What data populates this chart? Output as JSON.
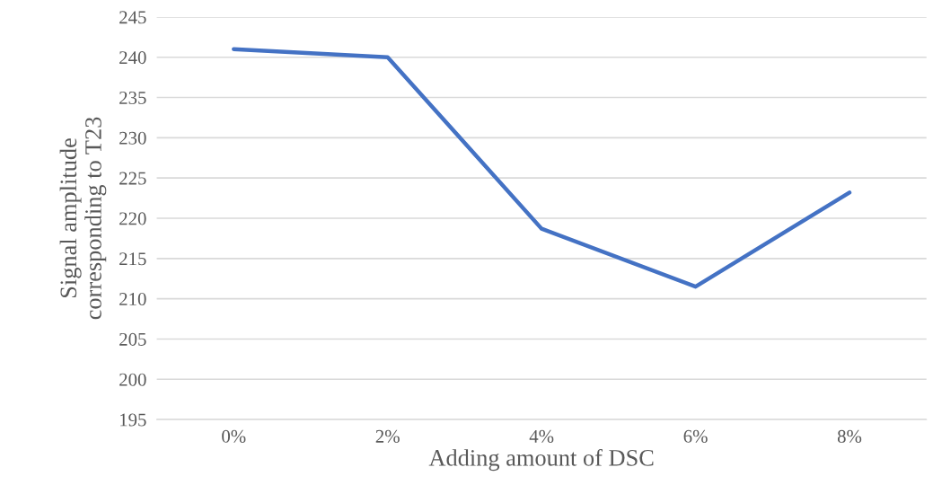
{
  "chart_data": {
    "type": "line",
    "xlabel": "Adding amount of DSC",
    "ylabel": "Signal amplitude\ncorresponding to T23",
    "categories": [
      "0%",
      "2%",
      "4%",
      "6%",
      "8%"
    ],
    "series": [
      {
        "color": "#4472c4",
        "values": [
          241.0,
          240.0,
          218.7,
          211.5,
          223.2
        ]
      }
    ],
    "ylim": [
      195,
      245
    ],
    "yticks": [
      195,
      200,
      205,
      210,
      215,
      220,
      225,
      230,
      235,
      240,
      245
    ],
    "grid": "y",
    "marker": "none",
    "line_style": "solid"
  }
}
